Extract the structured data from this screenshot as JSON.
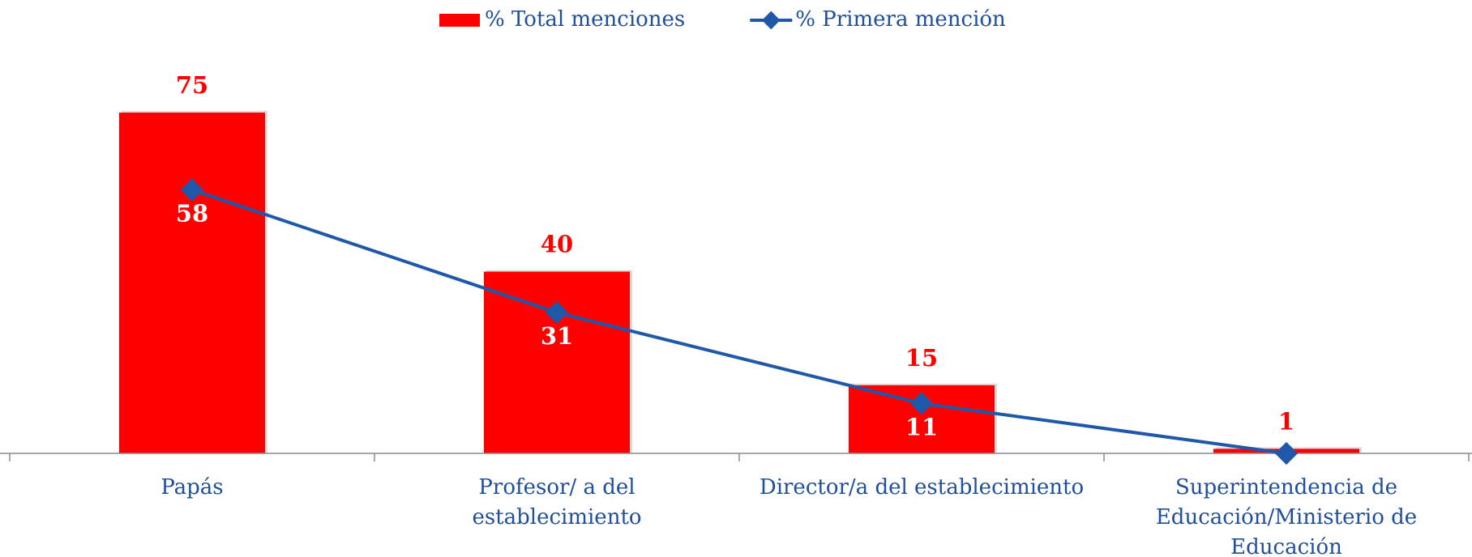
{
  "chart_data": {
    "type": "bar_line",
    "categories": [
      [
        "Papás"
      ],
      [
        "Profesor/ a del",
        "establecimiento"
      ],
      [
        "Director/a del establecimiento"
      ],
      [
        "Superintendencia de",
        "Educación/Ministerio de",
        "Educación"
      ]
    ],
    "series": [
      {
        "name": "% Total menciones",
        "type": "bar",
        "color": "#ff0000",
        "values": [
          75,
          40,
          15,
          1
        ]
      },
      {
        "name": "% Primera mención",
        "type": "line",
        "color": "#1f58a8",
        "values": [
          58,
          31,
          11,
          0
        ],
        "value_labels": [
          "58",
          "31",
          "11",
          null
        ]
      }
    ],
    "ylim": [
      0,
      80
    ],
    "legend": "top"
  }
}
